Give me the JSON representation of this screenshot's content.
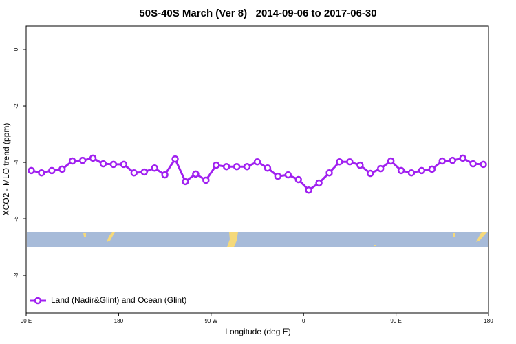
{
  "chart_data": {
    "type": "line",
    "title": "50S-40S March (Ver 8)   2014-09-06 to 2017-06-30",
    "x_label": "Longitude (deg E)",
    "y_label": "XCO2 - MLO trend (ppm)",
    "xlim": [
      90,
      540
    ],
    "xticks": [
      {
        "value": 90,
        "label": "90 E"
      },
      180,
      {
        "value": 270,
        "label": "90 W"
      },
      {
        "value": 360,
        "label": "0"
      },
      {
        "value": 450,
        "label": "90 E"
      },
      {
        "value": 540,
        "label": "180"
      }
    ],
    "ylim": [
      -9.34,
      0.83
    ],
    "yticks": [
      0,
      -2,
      -4,
      -6,
      -8
    ],
    "legend": "bottom-left",
    "x": [
      95,
      105,
      115,
      125,
      135,
      145,
      155,
      165,
      175,
      185,
      195,
      205,
      215,
      225,
      235,
      245,
      255,
      265,
      275,
      285,
      295,
      305,
      315,
      325,
      335,
      345,
      355,
      365,
      375,
      385,
      395,
      405,
      415,
      425,
      435,
      445,
      455,
      465,
      475,
      485,
      495,
      505,
      515,
      525,
      535
    ],
    "series": [
      {
        "name": "Land (Nadir&Glint) and Ocean (Glint)",
        "color": "#a020f0",
        "values": [
          -4.29,
          -4.37,
          -4.29,
          -4.24,
          -3.95,
          -3.93,
          -3.85,
          -4.05,
          -4.07,
          -4.07,
          -4.37,
          -4.34,
          -4.2,
          -4.44,
          -3.88,
          -4.68,
          -4.41,
          -4.63,
          -4.1,
          -4.15,
          -4.15,
          -4.15,
          -3.98,
          -4.2,
          -4.49,
          -4.44,
          -4.61,
          -4.98,
          -4.73,
          -4.37,
          -3.98,
          -3.98,
          -4.1,
          -4.39,
          -4.22,
          -3.95,
          -4.29,
          -4.37,
          -4.29,
          -4.24,
          -3.95,
          -3.93,
          -3.85,
          -4.05,
          -4.07
        ]
      }
    ]
  }
}
